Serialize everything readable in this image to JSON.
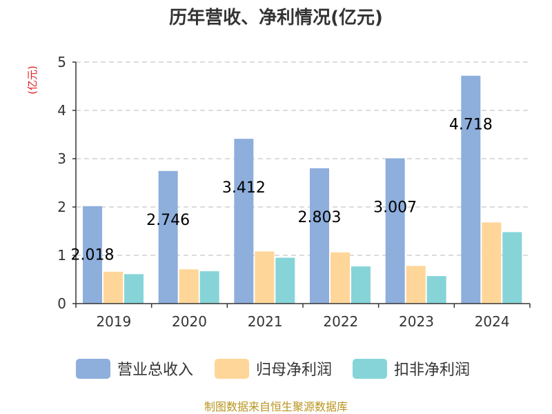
{
  "title": "历年营收、净利情况(亿元)",
  "unit_label": "(亿元)",
  "footer": "制图数据来自恒生聚源数据库",
  "colors": {
    "revenue": "#8eaedc",
    "net_profit": "#ffd699",
    "deducted_profit": "#86d4d8"
  },
  "chart_data": {
    "type": "bar",
    "title": "历年营收、净利情况(亿元)",
    "ylabel": "(亿元)",
    "xlabel": "",
    "categories": [
      "2019",
      "2020",
      "2021",
      "2022",
      "2023",
      "2024"
    ],
    "ylim": [
      0,
      5
    ],
    "yticks": [
      0,
      1,
      2,
      3,
      4,
      5
    ],
    "grid": true,
    "legend_position": "bottom",
    "series": [
      {
        "name": "营业总收入",
        "color": "#8eaedc",
        "values": [
          2.018,
          2.746,
          3.412,
          2.803,
          3.007,
          4.718
        ],
        "labels": [
          "2.018",
          "2.746",
          "3.412",
          "2.803",
          "3.007",
          "4.718"
        ]
      },
      {
        "name": "归母净利润",
        "color": "#ffd699",
        "values": [
          0.66,
          0.71,
          1.08,
          1.06,
          0.78,
          1.68
        ]
      },
      {
        "name": "扣非净利润",
        "color": "#86d4d8",
        "values": [
          0.61,
          0.67,
          0.95,
          0.77,
          0.57,
          1.48
        ]
      }
    ]
  }
}
